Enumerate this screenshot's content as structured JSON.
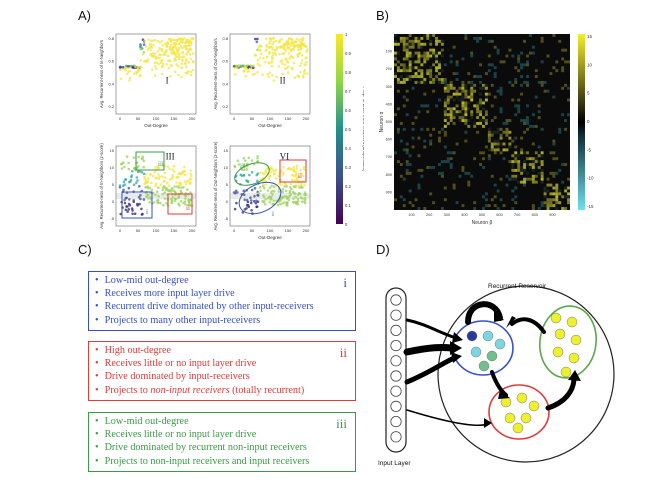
{
  "panels": {
    "a": {
      "letter": "A)"
    },
    "b": {
      "letter": "B)"
    },
    "c": {
      "letter": "C)"
    },
    "d": {
      "letter": "D)"
    }
  },
  "panel_a": {
    "colors": {
      "yellow": "#f4e542",
      "green": "#9ad35a",
      "teal": "#34a6a1",
      "blue": "#3a4fa0",
      "purple": "#2e2473",
      "box_blue": "#3650c8",
      "box_red": "#e03a3a",
      "box_green": "#3c9a47"
    },
    "plots": [
      {
        "ylabel": "Avg. Recurrent-ness of In-Neighbors",
        "xlabel": "Out-Degree",
        "numeral": "I",
        "xticks": [
          "0",
          "50",
          "100",
          "150",
          "200"
        ],
        "yticks": [
          "0.8",
          "0.6",
          "0.4",
          "0.2"
        ]
      },
      {
        "ylabel": "Avg. Recurrent-ness of Out-Neighbors",
        "xlabel": "Out-Degree",
        "numeral": "II",
        "xticks": [
          "0",
          "50",
          "100",
          "150",
          "200"
        ],
        "yticks": [
          "0.8",
          "0.6",
          "0.4",
          "0.2"
        ]
      },
      {
        "ylabel": "Avg. Recurrent-ness of In-Neighbors (z-score)",
        "xlabel": "",
        "numeral": "III",
        "xticks": [
          "0",
          "50",
          "100",
          "150",
          "200"
        ],
        "yticks": [
          "15",
          "10",
          "5",
          "0",
          "-5"
        ],
        "box_labels": [
          "iii",
          "i",
          "ii"
        ]
      },
      {
        "ylabel": "Avg. Recurrent-ness of Out-Neighbors (z-score)",
        "xlabel": "Out-Degree",
        "numeral": "VI",
        "xticks": [
          "0",
          "50",
          "100",
          "150",
          "200"
        ],
        "yticks": [
          "15",
          "10",
          "5",
          "0",
          "-5"
        ],
        "box_labels": [
          "iii",
          "ii",
          "i"
        ]
      }
    ],
    "colorbar": {
      "label": "Prop. of drive from recurrent (unspecified)",
      "ticks": [
        "1",
        "0.9",
        "0.8",
        "0.7",
        "0.6",
        "0.5",
        "0.4",
        "0.3",
        "0.2",
        "0.1",
        "0"
      ]
    }
  },
  "panel_b": {
    "xlabel": "Neuron β",
    "ylabel": "Neuron α",
    "ticks": [
      "100",
      "200",
      "300",
      "400",
      "500",
      "600",
      "700",
      "800",
      "900"
    ],
    "colorbar_ticks": [
      "15",
      "10",
      "5",
      "0",
      "-5",
      "-10",
      "-15"
    ],
    "colors": {
      "yellow": "#f1ee3a",
      "cyan": "#3ec6d6",
      "dark": "#0b0b0b",
      "gray": "#1d2a22"
    }
  },
  "panel_c": {
    "boxes": [
      {
        "numeral": "i",
        "color": "#3650c8",
        "items": [
          "Low-mid out-degree",
          "Receives more input layer drive",
          "Recurrent drive dominated by other input-receivers",
          "Projects to many other input-receivers"
        ]
      },
      {
        "numeral": "ii",
        "color": "#e03a3a",
        "items": [
          "High out-degree",
          "Receives little or no input layer drive",
          "Drive dominated by input-receivers"
        ],
        "last_item": {
          "before": "Projects to ",
          "emph": "non-input receivers",
          "after": " (totally recurrent)"
        }
      },
      {
        "numeral": "iii",
        "color": "#3c9a47",
        "items": [
          "Low-mid out-degree",
          "Receives little or no input layer drive",
          "Drive dominated by recurrent non-input receivers",
          "Projects to non-input receivers and input receivers"
        ]
      }
    ]
  },
  "panel_d": {
    "reservoir_label": "Recurrent Reservoir",
    "input_label": "Input Layer",
    "colors": {
      "blue_cluster": "#3650c8",
      "green_cluster": "#5aa84a",
      "red_cluster": "#e03a3a",
      "dot_yellow": "#eef02e",
      "dot_cyan": "#7ad7e2",
      "dot_green": "#6fc08a",
      "dot_navy": "#2b3a9a"
    }
  }
}
